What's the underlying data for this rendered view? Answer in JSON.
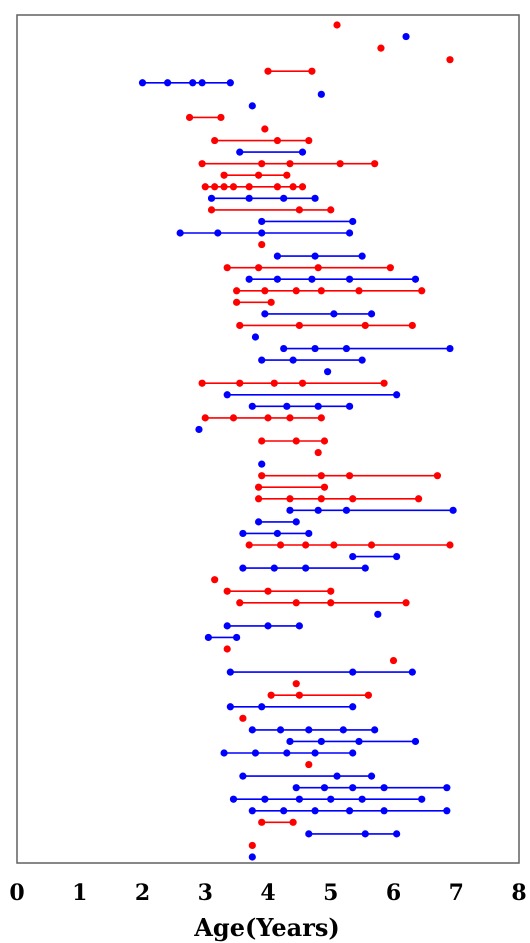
{
  "chart_data": {
    "type": "scatter",
    "title": "",
    "xlabel": "Age(Years)",
    "ylabel": "",
    "xlim": [
      0,
      8
    ],
    "xticks": [
      "0",
      "1",
      "2",
      "3",
      "4",
      "5",
      "6",
      "7",
      "8"
    ],
    "grid": false,
    "legend": "none",
    "series_colors": {
      "red": "#ff0000",
      "blue": "#0000ff"
    },
    "subjects": [
      {
        "color": "red",
        "ages": [
          5.1
        ]
      },
      {
        "color": "blue",
        "ages": [
          6.2
        ]
      },
      {
        "color": "red",
        "ages": [
          5.8
        ]
      },
      {
        "color": "red",
        "ages": [
          6.9
        ]
      },
      {
        "color": "red",
        "ages": [
          4.0,
          4.7
        ]
      },
      {
        "color": "blue",
        "ages": [
          2.0,
          2.4,
          2.8,
          2.95,
          3.4
        ]
      },
      {
        "color": "blue",
        "ages": [
          4.85
        ]
      },
      {
        "color": "blue",
        "ages": [
          3.75
        ]
      },
      {
        "color": "red",
        "ages": [
          2.75,
          3.25
        ]
      },
      {
        "color": "red",
        "ages": [
          3.95
        ]
      },
      {
        "color": "red",
        "ages": [
          3.15,
          4.15,
          4.65
        ]
      },
      {
        "color": "blue",
        "ages": [
          3.55,
          4.55
        ]
      },
      {
        "color": "red",
        "ages": [
          2.95,
          3.9,
          4.35,
          5.15,
          5.7
        ]
      },
      {
        "color": "red",
        "ages": [
          3.3,
          3.85,
          4.3
        ]
      },
      {
        "color": "red",
        "ages": [
          3.0,
          3.15,
          3.3,
          3.45,
          3.7,
          4.15,
          4.4,
          4.55
        ]
      },
      {
        "color": "blue",
        "ages": [
          3.1,
          3.7,
          4.25,
          4.75
        ]
      },
      {
        "color": "red",
        "ages": [
          3.1,
          4.5,
          5.0
        ]
      },
      {
        "color": "blue",
        "ages": [
          3.9,
          5.35
        ]
      },
      {
        "color": "blue",
        "ages": [
          2.6,
          3.2,
          3.9,
          5.3
        ]
      },
      {
        "color": "red",
        "ages": [
          3.9
        ]
      },
      {
        "color": "blue",
        "ages": [
          4.15,
          4.75,
          5.5
        ]
      },
      {
        "color": "red",
        "ages": [
          3.35,
          3.85,
          4.8,
          5.95
        ]
      },
      {
        "color": "blue",
        "ages": [
          3.7,
          4.15,
          4.7,
          5.3,
          6.35
        ]
      },
      {
        "color": "red",
        "ages": [
          3.5,
          3.95,
          4.45,
          4.85,
          5.45,
          6.45
        ]
      },
      {
        "color": "red",
        "ages": [
          3.5,
          4.05
        ]
      },
      {
        "color": "blue",
        "ages": [
          3.95,
          5.05,
          5.65
        ]
      },
      {
        "color": "red",
        "ages": [
          3.55,
          4.5,
          5.55,
          6.3
        ]
      },
      {
        "color": "blue",
        "ages": [
          3.8
        ]
      },
      {
        "color": "blue",
        "ages": [
          4.25,
          4.75,
          5.25,
          6.9
        ]
      },
      {
        "color": "blue",
        "ages": [
          3.9,
          4.4,
          5.5
        ]
      },
      {
        "color": "blue",
        "ages": [
          4.95
        ]
      },
      {
        "color": "red",
        "ages": [
          2.95,
          3.55,
          4.1,
          4.55,
          5.85
        ]
      },
      {
        "color": "blue",
        "ages": [
          3.35,
          6.05
        ]
      },
      {
        "color": "blue",
        "ages": [
          3.75,
          4.3,
          4.8,
          5.3
        ]
      },
      {
        "color": "red",
        "ages": [
          3.0,
          3.45,
          4.0,
          4.35,
          4.85
        ]
      },
      {
        "color": "blue",
        "ages": [
          2.9
        ]
      },
      {
        "color": "red",
        "ages": [
          3.9,
          4.45,
          4.9
        ]
      },
      {
        "color": "red",
        "ages": [
          4.8
        ]
      },
      {
        "color": "blue",
        "ages": [
          3.9
        ]
      },
      {
        "color": "red",
        "ages": [
          3.9,
          4.85,
          5.3,
          6.7
        ]
      },
      {
        "color": "red",
        "ages": [
          3.85,
          4.9
        ]
      },
      {
        "color": "red",
        "ages": [
          3.85,
          4.35,
          4.85,
          5.35,
          6.4
        ]
      },
      {
        "color": "blue",
        "ages": [
          4.35,
          4.8,
          5.25,
          6.95
        ]
      },
      {
        "color": "blue",
        "ages": [
          3.85,
          4.45
        ]
      },
      {
        "color": "blue",
        "ages": [
          3.6,
          4.15,
          4.65
        ]
      },
      {
        "color": "red",
        "ages": [
          3.7,
          4.2,
          4.6,
          5.05,
          5.65,
          6.9
        ]
      },
      {
        "color": "blue",
        "ages": [
          5.35,
          6.05
        ]
      },
      {
        "color": "blue",
        "ages": [
          3.6,
          4.1,
          4.6,
          5.55
        ]
      },
      {
        "color": "red",
        "ages": [
          3.15
        ]
      },
      {
        "color": "red",
        "ages": [
          3.35,
          4.0,
          5.0
        ]
      },
      {
        "color": "red",
        "ages": [
          3.55,
          4.45,
          5.0,
          6.2
        ]
      },
      {
        "color": "blue",
        "ages": [
          5.75
        ]
      },
      {
        "color": "blue",
        "ages": [
          3.35,
          4.0,
          4.5
        ]
      },
      {
        "color": "blue",
        "ages": [
          3.05,
          3.5
        ]
      },
      {
        "color": "red",
        "ages": [
          3.35
        ]
      },
      {
        "color": "red",
        "ages": [
          6.0
        ]
      },
      {
        "color": "blue",
        "ages": [
          3.4,
          5.35,
          6.3
        ]
      },
      {
        "color": "red",
        "ages": [
          4.45
        ]
      },
      {
        "color": "red",
        "ages": [
          4.05,
          4.5,
          5.6
        ]
      },
      {
        "color": "blue",
        "ages": [
          3.4,
          3.9,
          5.35
        ]
      },
      {
        "color": "red",
        "ages": [
          3.6
        ]
      },
      {
        "color": "blue",
        "ages": [
          3.75,
          4.2,
          4.65,
          5.2,
          5.7
        ]
      },
      {
        "color": "blue",
        "ages": [
          4.35,
          4.85,
          5.45,
          6.35
        ]
      },
      {
        "color": "blue",
        "ages": [
          3.3,
          3.8,
          4.3,
          4.75,
          5.35
        ]
      },
      {
        "color": "red",
        "ages": [
          4.65
        ]
      },
      {
        "color": "blue",
        "ages": [
          3.6,
          5.1,
          5.65
        ]
      },
      {
        "color": "blue",
        "ages": [
          4.45,
          4.9,
          5.35,
          5.85,
          6.85
        ]
      },
      {
        "color": "blue",
        "ages": [
          3.45,
          3.95,
          4.5,
          5.0,
          5.5,
          6.45
        ]
      },
      {
        "color": "blue",
        "ages": [
          3.75,
          4.25,
          4.75,
          5.3,
          5.85,
          6.85
        ]
      },
      {
        "color": "red",
        "ages": [
          3.9,
          4.4
        ]
      },
      {
        "color": "blue",
        "ages": [
          4.65,
          5.55,
          6.05
        ]
      },
      {
        "color": "red",
        "ages": [
          3.75
        ]
      },
      {
        "color": "blue",
        "ages": [
          3.75
        ]
      }
    ]
  }
}
